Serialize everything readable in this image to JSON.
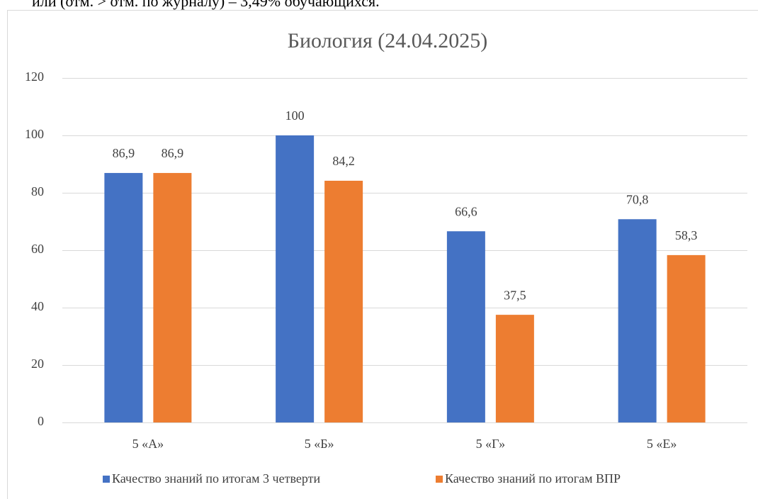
{
  "header_text": "или (отм. > отм. по журналу) – 3,49% обучающихся.",
  "chart_data": {
    "type": "bar",
    "title": "Биология (24.04.2025)",
    "categories": [
      "5 «А»",
      "5 «Б»",
      "5 «Г»",
      "5 «Е»"
    ],
    "series": [
      {
        "name": "Качество знаний по итогам 3 четверти",
        "color": "#4472c4",
        "values": [
          86.9,
          100,
          66.6,
          70.8
        ],
        "value_labels": [
          "86,9",
          "100",
          "66,6",
          "70,8"
        ]
      },
      {
        "name": "Качество знаний по итогам ВПР",
        "color": "#ed7d31",
        "values": [
          86.9,
          84.2,
          37.5,
          58.3
        ],
        "value_labels": [
          "86,9",
          "84,2",
          "37,5",
          "58,3"
        ]
      }
    ],
    "ylim": [
      0,
      120
    ],
    "yticks": [
      0,
      20,
      40,
      60,
      80,
      100,
      120
    ],
    "grid": true,
    "legend": "bottom"
  }
}
